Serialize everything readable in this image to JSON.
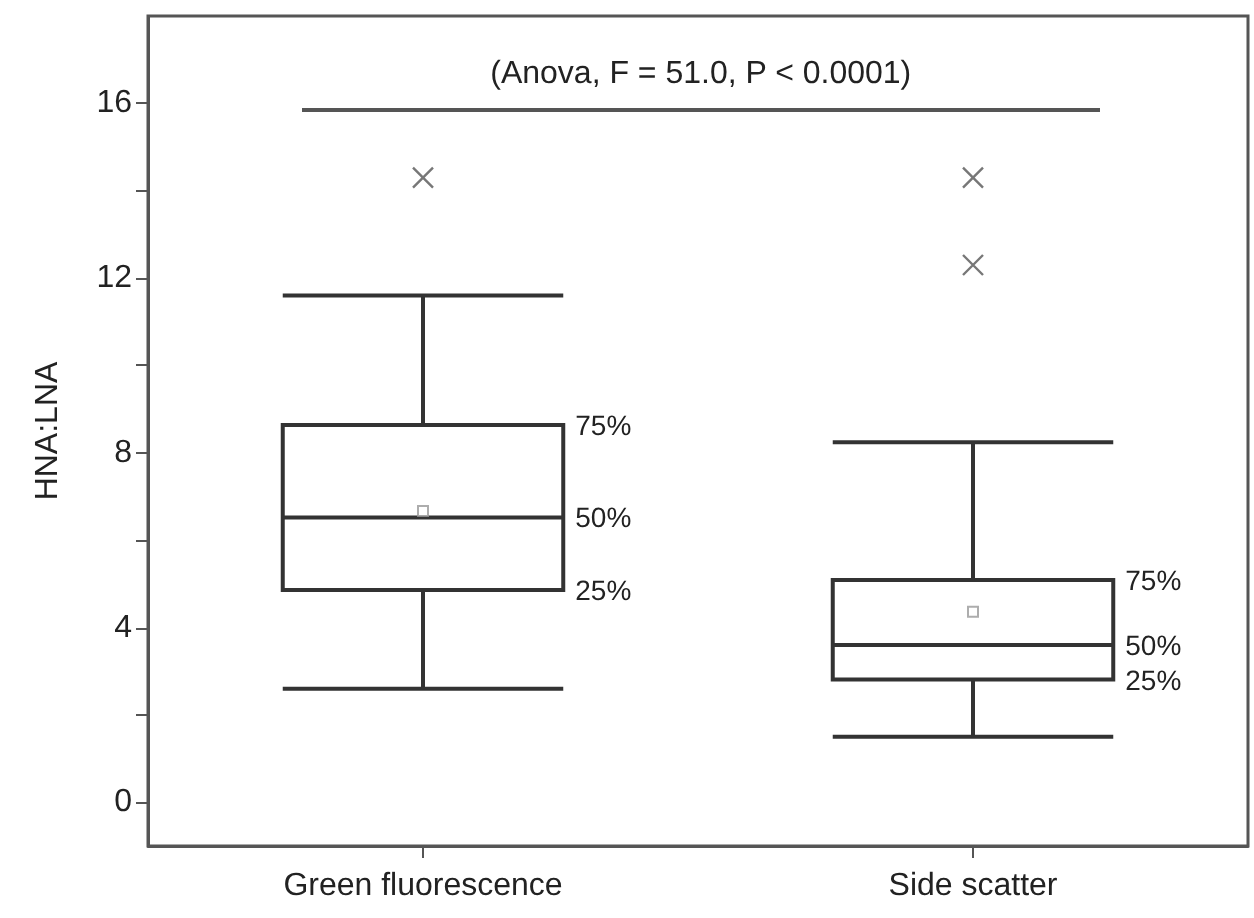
{
  "chart_data": {
    "type": "box",
    "ylabel": "HNA:LNA",
    "categories": [
      "Green fluorescence",
      "Side scatter"
    ],
    "color": "#333333",
    "boxes": [
      {
        "low": 2.6,
        "q1": 4.86,
        "median": 6.52,
        "q3": 8.64,
        "high": 11.6,
        "mean": 6.67,
        "outliers": [
          14.3
        ]
      },
      {
        "low": 1.5,
        "q1": 2.81,
        "median": 3.6,
        "q3": 5.09,
        "high": 8.24,
        "mean": 4.36,
        "outliers": [
          12.3,
          14.3
        ]
      }
    ],
    "ylim": [
      -1,
      18
    ],
    "yticks": [
      0,
      {
        "value": 2,
        "label": null
      },
      4,
      {
        "value": 6,
        "label": null
      },
      8,
      {
        "value": 10,
        "label": null
      },
      12,
      {
        "value": 14,
        "label": null
      },
      16
    ],
    "grid": false,
    "annotations": [
      "75%",
      "50%",
      "25%",
      "75%",
      "50%",
      "25%",
      "(Anova, F = 51.0, P < 0.0001)"
    ]
  }
}
